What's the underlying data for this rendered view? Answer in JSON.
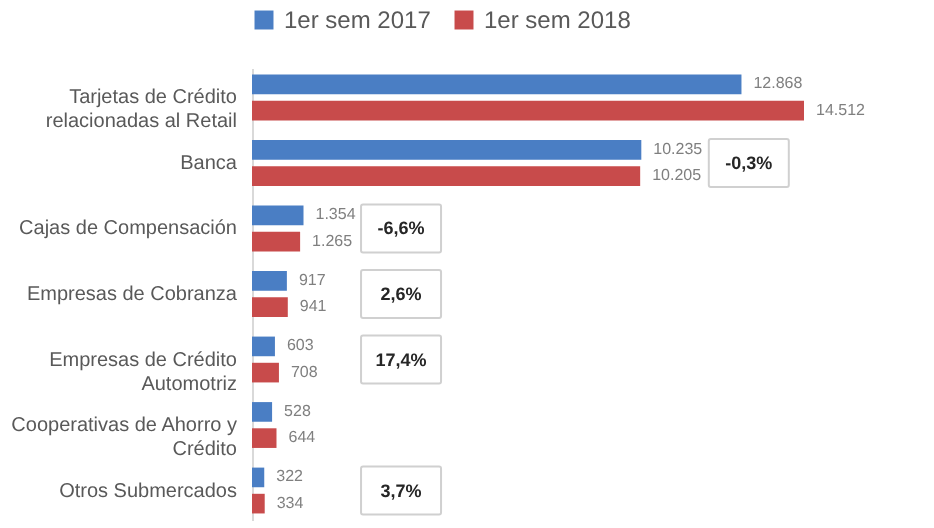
{
  "chart_data": {
    "type": "bar",
    "orientation": "horizontal",
    "categories": [
      "Tarjetas de Crédito relacionadas al Retail",
      "Banca",
      "Cajas de Compensación",
      "Empresas de Cobranza",
      "Empresas de Crédito Automotriz",
      "Cooperativas de Ahorro y Crédito",
      "Otros Submercados"
    ],
    "series": [
      {
        "name": "1er sem 2017",
        "color": "#4a7ec4",
        "values": [
          12868,
          10235,
          1354,
          917,
          603,
          528,
          322
        ],
        "value_labels": [
          "12.868",
          "10.235",
          "1.354",
          "917",
          "603",
          "528",
          "322"
        ]
      },
      {
        "name": "1er sem 2018",
        "color": "#c84b4b",
        "values": [
          14512,
          10205,
          1265,
          941,
          708,
          644,
          334
        ],
        "value_labels": [
          "14.512",
          "10.205",
          "1.265",
          "941",
          "708",
          "644",
          "334"
        ]
      }
    ],
    "legend": "top",
    "grid": false,
    "annotations": [
      "-0,3%",
      "-6,6%",
      "2,6%",
      "17,4%",
      "3,7%"
    ]
  }
}
